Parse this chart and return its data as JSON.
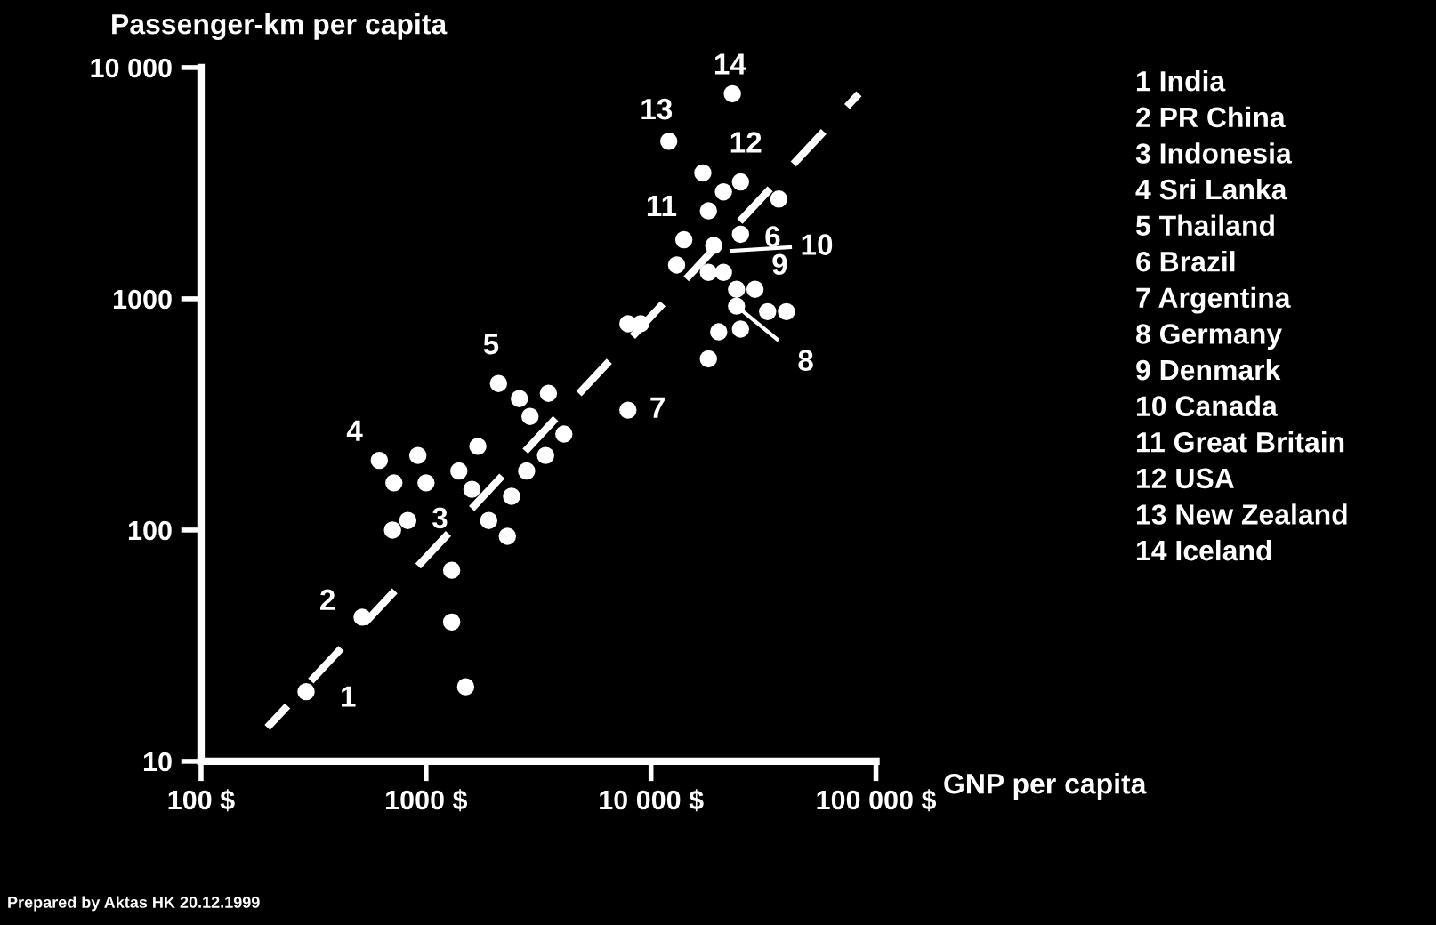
{
  "chart_data": {
    "type": "scatter",
    "log": "xy",
    "marker": "circle",
    "grid": false,
    "ylabel": "Passenger-km per capita",
    "xlabel": "GNP per capita",
    "xlim": [
      100,
      100000
    ],
    "ylim": [
      10,
      10000
    ],
    "xticks": [
      {
        "value": 100,
        "label": "100 $"
      },
      {
        "value": 1000,
        "label": "1000 $"
      },
      {
        "value": 10000,
        "label": "10 000 $"
      },
      {
        "value": 100000,
        "label": "100 000 $"
      }
    ],
    "yticks": [
      10,
      100,
      1000,
      {
        "value": 10000,
        "label": "10 000"
      }
    ],
    "series": [
      {
        "type": "scatter",
        "color": "#ffffff",
        "x": [
          293,
          520,
          12000,
          23000,
          17000,
          21000,
          25000,
          37000,
          18000,
          14000,
          19000,
          25000,
          13000,
          18000,
          21000,
          24000,
          29000,
          24000,
          33000,
          40000,
          20000,
          25000,
          18000,
          7900,
          9000,
          7900,
          2100,
          2600,
          2900,
          3500,
          4100,
          3400,
          2800,
          1700,
          2400,
          1900,
          2300,
          1400,
          1600,
          920,
          1000,
          620,
          720,
          710,
          830,
          1300,
          1300,
          1500
        ],
        "values": [
          20,
          42,
          4800,
          7700,
          3500,
          2900,
          3200,
          2700,
          2400,
          1800,
          1700,
          1900,
          1400,
          1300,
          1300,
          1100,
          1100,
          930,
          880,
          880,
          720,
          740,
          550,
          780,
          780,
          330,
          430,
          370,
          310,
          390,
          260,
          210,
          180,
          230,
          140,
          110,
          94,
          180,
          150,
          210,
          160,
          200,
          160,
          100,
          110,
          67,
          40,
          21
        ]
      },
      {
        "type": "line",
        "color": "#ffffff",
        "line_style": "dashed",
        "marker": "none",
        "x": [
          197,
          84000
        ],
        "values": [
          14,
          7700
        ]
      }
    ],
    "annotations": [
      {
        "text": "1",
        "x": 293,
        "y": 20
      },
      {
        "text": "2",
        "x": 520,
        "y": 42
      },
      {
        "text": "3",
        "x": 830,
        "y": 110
      },
      {
        "text": "4",
        "x": 620,
        "y": 200
      },
      {
        "text": "5",
        "x": 2100,
        "y": 430
      },
      {
        "text": "6",
        "x": 25000,
        "y": 1900
      },
      {
        "text": "7",
        "x": 7900,
        "y": 330
      },
      {
        "text": "8",
        "x": 24000,
        "y": 930
      },
      {
        "text": "9",
        "x": 29000,
        "y": 1100
      },
      {
        "text": "11",
        "x": 18000,
        "y": 2400
      },
      {
        "text": "12",
        "x": 21000,
        "y": 2900
      },
      {
        "text": "13",
        "x": 12000,
        "y": 4800
      },
      {
        "text": "14",
        "x": 23000,
        "y": 7700
      },
      "10",
      "1 India",
      "2 PR China",
      "3 Indonesia",
      "4 Sri Lanka",
      "5 Thailand",
      "6 Brazil",
      "7 Argentina",
      "8 Germany",
      "9 Denmark",
      "10 Canada",
      "11 Great Britain",
      "12 USA",
      "13 New Zealand",
      "14 Iceland",
      "Prepared by Aktas HK 20.12.1999"
    ]
  }
}
